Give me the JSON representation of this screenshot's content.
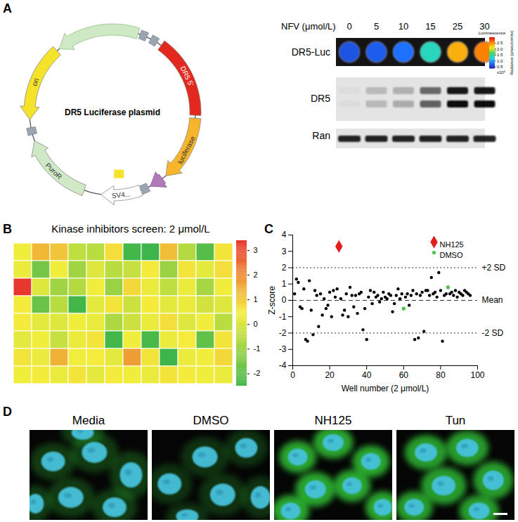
{
  "panel_labels": [
    "A",
    "B",
    "C",
    "D"
  ],
  "panel_A": {
    "plasmid": {
      "title": "DR5 Luciferase plasmid",
      "features": [
        {
          "label": "DR5 5'",
          "color": "#e3281f"
        },
        {
          "label": "luciferase",
          "color": "#f7b52c"
        },
        {
          "label": "PuroR",
          "color": "#cfe8c6"
        },
        {
          "label": "ori",
          "color": "#f5e32a"
        },
        {
          "label": "SV4...",
          "color": "#ffffff"
        }
      ]
    },
    "blot": {
      "treatment_label": "NFV (μmol/L)",
      "concentrations": [
        0,
        5,
        10,
        15,
        25,
        30
      ],
      "rows": [
        "DR5-Luc",
        "DR5",
        "Ran"
      ],
      "luminescence": [
        0.7,
        0.75,
        0.85,
        1.4,
        2.4,
        2.6
      ],
      "dr5_band_intensity": [
        0.03,
        0.2,
        0.25,
        0.6,
        1,
        1
      ],
      "ran_band_intensity": [
        0.85,
        0.85,
        0.85,
        0.85,
        0.85,
        0.85
      ],
      "colorbar": {
        "title": "Luminescence",
        "multiplier_label": "x10⁵",
        "unit_label": "Radiance (p/sec/cm²/sr)",
        "range": [
          0.4,
          3.0
        ],
        "ticks": [
          0.5,
          {
            "value": 1,
            "label": "1.0"
          },
          1.5,
          {
            "value": 2,
            "label": "2.0"
          },
          2.5
        ],
        "colors": [
          "#1c1c9c",
          "#1f6dff",
          "#22d2e6",
          "#3ddc62",
          "#f2ea1e",
          "#ff8a00",
          "#e0120c"
        ]
      }
    }
  },
  "chart_data": [
    {
      "type": "heatmap",
      "title": "Kinase inhibitors screen: 2 μmol/L",
      "tick_labels": false,
      "cells": [
        [
          0.4,
          1.3,
          1.1,
          -0.4,
          -0.5,
          0.7,
          -2.4,
          -2.5,
          1.2,
          -0.6,
          -2.1,
          0.6
        ],
        [
          0.3,
          -1.6,
          0.4,
          -0.9,
          0.1,
          -0.5,
          -0.3,
          0.5,
          -1.0,
          0.6,
          0.2,
          0.7
        ],
        [
          3.3,
          0.1,
          -0.9,
          -0.6,
          0.4,
          -1.0,
          0.8,
          0.3,
          -0.4,
          0.3,
          -0.8,
          0.4
        ],
        [
          0.5,
          -1.8,
          -0.5,
          -2.4,
          0.2,
          0.6,
          -0.2,
          0.5,
          0.2,
          0.3,
          -0.1,
          0.1
        ],
        [
          0.5,
          0.2,
          0.1,
          0.4,
          0.3,
          -0.7,
          -0.2,
          0.3,
          0.7,
          0.1,
          0.4,
          -0.5
        ],
        [
          0.2,
          0.4,
          -0.3,
          0.3,
          0.6,
          -2.4,
          0.4,
          -2.3,
          0.3,
          0.5,
          -1.9,
          0.6
        ],
        [
          0.6,
          0.3,
          1.4,
          0.4,
          0.5,
          0.2,
          1.7,
          0.6,
          -2.5,
          0.3,
          0.4,
          0.8
        ],
        [
          0.4,
          0.5,
          0.3,
          0.6,
          0.2,
          0.5,
          0.4,
          0.3,
          0.6,
          0.5,
          0.4,
          0.3
        ]
      ],
      "colorbar": {
        "range": [
          -2.5,
          3.4
        ],
        "ticks": [
          -2,
          -1,
          0,
          1,
          2,
          3
        ],
        "colors": [
          "#3db54a",
          "#f4ee3c",
          "#e8322d"
        ]
      }
    },
    {
      "type": "scatter",
      "xlabel": "Well number (2 μmol/L)",
      "ylabel": "Z-score",
      "xlim": [
        0,
        100
      ],
      "ylim": [
        -4,
        4
      ],
      "xticks": [
        0,
        20,
        40,
        60,
        80,
        100
      ],
      "yticks": [
        -4,
        -3,
        -2,
        -1,
        0,
        1,
        2,
        3,
        4
      ],
      "color": "#000000",
      "marker": "circle",
      "x": [
        1,
        2,
        3,
        4,
        5,
        6,
        7,
        8,
        9,
        10,
        11,
        12,
        13,
        14,
        15,
        16,
        17,
        18,
        19,
        20,
        21,
        22,
        23,
        24,
        25,
        26,
        27,
        28,
        29,
        30,
        31,
        32,
        33,
        34,
        35,
        36,
        37,
        38,
        39,
        40,
        41,
        42,
        43,
        44,
        45,
        46,
        47,
        48,
        49,
        50,
        51,
        52,
        53,
        54,
        55,
        56,
        57,
        58,
        59,
        60,
        61,
        62,
        63,
        64,
        65,
        66,
        67,
        68,
        69,
        70,
        71,
        72,
        73,
        74,
        75,
        76,
        77,
        78,
        79,
        80,
        81,
        82,
        83,
        84,
        85,
        86,
        87,
        88,
        89,
        90,
        91,
        92,
        93,
        94,
        95,
        96
      ],
      "values": [
        0.4,
        1.3,
        1.1,
        -0.4,
        -0.5,
        0.7,
        -2.4,
        -2.5,
        1.2,
        -0.6,
        -2.1,
        0.6,
        0.3,
        -1.6,
        0.4,
        -0.9,
        0.1,
        -0.5,
        -0.3,
        0.5,
        -1.0,
        0.6,
        0.2,
        0.7,
        3.3,
        0.1,
        -0.9,
        -0.6,
        0.4,
        -1.0,
        0.8,
        0.3,
        -0.4,
        0.3,
        -0.8,
        0.4,
        0.5,
        -1.8,
        -0.5,
        -2.4,
        0.2,
        0.6,
        -0.2,
        0.5,
        0.2,
        0.3,
        -0.1,
        0.1,
        0.5,
        0.2,
        0.1,
        0.4,
        0.3,
        -0.7,
        -0.2,
        0.3,
        0.7,
        0.1,
        0.4,
        -0.5,
        0.2,
        0.4,
        -0.3,
        0.3,
        0.6,
        -2.4,
        0.4,
        -2.3,
        0.3,
        0.5,
        -1.9,
        0.6,
        0.6,
        0.3,
        1.4,
        0.4,
        0.5,
        0.2,
        1.7,
        0.6,
        -2.5,
        0.3,
        0.4,
        0.8,
        0.4,
        0.5,
        0.3,
        0.6,
        0.2,
        0.5,
        0.4,
        0.3,
        0.6,
        0.5,
        0.4,
        0.3
      ],
      "reference_lines": [
        {
          "value": 2,
          "label": "+2 SD",
          "line_style": "dotted"
        },
        {
          "value": 0,
          "label": "Mean",
          "line_style": "dashed"
        },
        {
          "value": -2,
          "label": "-2 SD",
          "line_style": "dotted"
        }
      ],
      "highlights": [
        {
          "name": "NH125",
          "color": "#e41e1e",
          "marker": "diamond",
          "x": [
            25
          ],
          "values": [
            3.3
          ]
        },
        {
          "name": "DMSO",
          "color": "#4cc34a",
          "marker": "circle",
          "x": [
            60,
            84
          ],
          "values": [
            -0.5,
            0.8
          ]
        }
      ],
      "legend": "top-right"
    }
  ],
  "panel_D": {
    "images": [
      {
        "label": "Media",
        "staining": 0.3
      },
      {
        "label": "DMSO",
        "staining": 0.25
      },
      {
        "label": "NH125",
        "staining": 0.9
      },
      {
        "label": "Tun",
        "staining": 0.85
      }
    ]
  }
}
